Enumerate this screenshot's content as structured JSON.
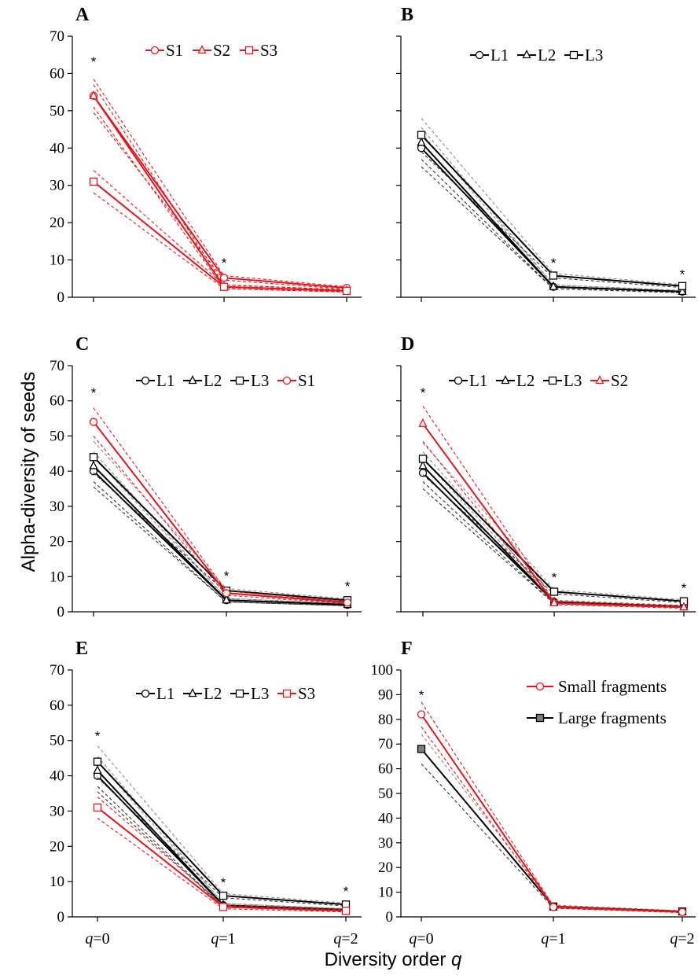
{
  "figure": {
    "ylabel": "Alpha-diversity of seeds",
    "xlabel": "Diversity order q",
    "xlabel_text": "Diversity order ",
    "xlabel_var": "q"
  },
  "chart_data": [
    {
      "panel": "A",
      "type": "line",
      "categories": [
        "q=0",
        "q=1",
        "q=2"
      ],
      "ylim": [
        0,
        70
      ],
      "yticks": [
        0,
        10,
        20,
        30,
        40,
        50,
        60,
        70
      ],
      "legend": "top-center",
      "series": [
        {
          "name": "S1",
          "color": "#e8141b",
          "marker": "circle",
          "values": [
            54,
            5.2,
            2.5
          ],
          "ci_upper": [
            58.5,
            5.8,
            2.8
          ],
          "ci_lower": [
            49.5,
            4.6,
            2.2
          ]
        },
        {
          "name": "S2",
          "color": "#e8141b",
          "marker": "triangle",
          "values": [
            54,
            2.8,
            1.7
          ],
          "ci_upper": [
            57,
            3.3,
            2.0
          ],
          "ci_lower": [
            51,
            2.3,
            1.4
          ]
        },
        {
          "name": "S3",
          "color": "#e8141b",
          "marker": "square",
          "values": [
            31,
            2.8,
            1.7
          ],
          "ci_upper": [
            34,
            3.3,
            2.0
          ],
          "ci_lower": [
            28,
            2.3,
            1.4
          ]
        }
      ],
      "annotations": [
        {
          "text": "*",
          "x": "q=0",
          "y": 62
        },
        {
          "text": "*",
          "x": "q=1",
          "y": 8
        }
      ]
    },
    {
      "panel": "B",
      "type": "line",
      "categories": [
        "q=0",
        "q=1",
        "q=2"
      ],
      "ylim": [
        0,
        70
      ],
      "legend": "top-center",
      "series": [
        {
          "name": "L1",
          "color": "#000000",
          "marker": "circle",
          "values": [
            40,
            2.8,
            1.5
          ],
          "ci_upper": [
            44,
            3.3,
            1.8
          ],
          "ci_lower": [
            35,
            2.3,
            1.2
          ]
        },
        {
          "name": "L2",
          "color": "#000000",
          "marker": "triangle",
          "values": [
            41.5,
            2.8,
            1.5
          ],
          "ci_upper": [
            45.5,
            3.3,
            1.8
          ],
          "ci_lower": [
            37,
            2.3,
            1.2
          ]
        },
        {
          "name": "L3",
          "color": "#000000",
          "marker": "square",
          "values": [
            43.5,
            5.8,
            3
          ],
          "ci_upper": [
            48,
            6.4,
            3.4
          ],
          "ci_lower": [
            39,
            5.2,
            2.6
          ]
        }
      ],
      "annotations": [
        {
          "text": "*",
          "x": "q=1",
          "y": 8
        },
        {
          "text": "*",
          "x": "q=2",
          "y": 5
        }
      ]
    },
    {
      "panel": "C",
      "type": "line",
      "categories": [
        "q=0",
        "q=1",
        "q=2"
      ],
      "ylim": [
        0,
        70
      ],
      "yticks": [
        0,
        10,
        20,
        30,
        40,
        50,
        60,
        70
      ],
      "legend": "top-center",
      "series": [
        {
          "name": "L1",
          "color": "#000000",
          "marker": "circle",
          "values": [
            40,
            3.3,
            2.0
          ],
          "ci_upper": [
            44,
            3.8,
            2.3
          ],
          "ci_lower": [
            35.5,
            2.8,
            1.7
          ]
        },
        {
          "name": "L2",
          "color": "#000000",
          "marker": "triangle",
          "values": [
            41.5,
            3.3,
            2.0
          ],
          "ci_upper": [
            45.5,
            3.8,
            2.3
          ],
          "ci_lower": [
            37,
            2.8,
            1.7
          ]
        },
        {
          "name": "L3",
          "color": "#000000",
          "marker": "square",
          "values": [
            44,
            6.0,
            3.3
          ],
          "ci_upper": [
            48.5,
            6.6,
            3.7
          ],
          "ci_lower": [
            39.5,
            5.4,
            2.9
          ]
        },
        {
          "name": "S1",
          "color": "#e8141b",
          "marker": "circle",
          "values": [
            54,
            5.3,
            2.6
          ],
          "ci_upper": [
            58,
            5.9,
            2.9
          ],
          "ci_lower": [
            50,
            4.7,
            2.3
          ]
        }
      ],
      "annotations": [
        {
          "text": "*",
          "x": "q=0",
          "y": 61
        },
        {
          "text": "*",
          "x": "q=1",
          "y": 9
        },
        {
          "text": "*",
          "x": "q=2",
          "y": 6
        }
      ]
    },
    {
      "panel": "D",
      "type": "line",
      "categories": [
        "q=0",
        "q=1",
        "q=2"
      ],
      "ylim": [
        0,
        70
      ],
      "legend": "top-center",
      "series": [
        {
          "name": "L1",
          "color": "#000000",
          "marker": "circle",
          "values": [
            39.5,
            2.8,
            1.5
          ],
          "ci_upper": [
            43.5,
            3.3,
            1.8
          ],
          "ci_lower": [
            35,
            2.3,
            1.2
          ]
        },
        {
          "name": "L2",
          "color": "#000000",
          "marker": "triangle",
          "values": [
            41.5,
            2.8,
            1.5
          ],
          "ci_upper": [
            45.5,
            3.3,
            1.8
          ],
          "ci_lower": [
            37,
            2.3,
            1.2
          ]
        },
        {
          "name": "L3",
          "color": "#000000",
          "marker": "square",
          "values": [
            43.5,
            5.7,
            3.0
          ],
          "ci_upper": [
            48,
            6.3,
            3.4
          ],
          "ci_lower": [
            39,
            5.1,
            2.6
          ]
        },
        {
          "name": "S2",
          "color": "#e8141b",
          "marker": "triangle",
          "values": [
            53.5,
            2.5,
            1.3
          ],
          "ci_upper": [
            58.5,
            3.0,
            1.6
          ],
          "ci_lower": [
            48.5,
            2.0,
            1.0
          ]
        }
      ],
      "annotations": [
        {
          "text": "*",
          "x": "q=0",
          "y": 61
        },
        {
          "text": "*",
          "x": "q=1",
          "y": 8.5
        },
        {
          "text": "*",
          "x": "q=2",
          "y": 5.5
        }
      ]
    },
    {
      "panel": "E",
      "type": "line",
      "categories": [
        "q=0",
        "q=1",
        "q=2"
      ],
      "ylim": [
        0,
        70
      ],
      "yticks": [
        0,
        10,
        20,
        30,
        40,
        50,
        60,
        70
      ],
      "legend": "top-center",
      "series": [
        {
          "name": "L1",
          "color": "#000000",
          "marker": "circle",
          "values": [
            40,
            3.3,
            2.0
          ],
          "ci_upper": [
            44,
            3.8,
            2.3
          ],
          "ci_lower": [
            35.5,
            2.8,
            1.7
          ]
        },
        {
          "name": "L2",
          "color": "#000000",
          "marker": "triangle",
          "values": [
            41.5,
            3.3,
            2.0
          ],
          "ci_upper": [
            45.5,
            3.8,
            2.3
          ],
          "ci_lower": [
            37,
            2.8,
            1.7
          ]
        },
        {
          "name": "L3",
          "color": "#000000",
          "marker": "square",
          "values": [
            44,
            6.0,
            3.5
          ],
          "ci_upper": [
            48.5,
            6.6,
            3.9
          ],
          "ci_lower": [
            39.5,
            5.4,
            3.1
          ]
        },
        {
          "name": "S3",
          "color": "#e8141b",
          "marker": "square",
          "values": [
            31,
            2.8,
            1.7
          ],
          "ci_upper": [
            34,
            3.3,
            2.0
          ],
          "ci_lower": [
            28,
            2.3,
            1.4
          ]
        }
      ],
      "annotations": [
        {
          "text": "*",
          "x": "q=0",
          "y": 50
        },
        {
          "text": "*",
          "x": "q=1",
          "y": 8.5
        },
        {
          "text": "*",
          "x": "q=2",
          "y": 6
        }
      ]
    },
    {
      "panel": "F",
      "type": "line",
      "categories": [
        "q=0",
        "q=1",
        "q=2"
      ],
      "ylim": [
        0,
        100
      ],
      "yticks": [
        0,
        10,
        20,
        30,
        40,
        50,
        60,
        70,
        80,
        90,
        100
      ],
      "legend": "top-right",
      "series": [
        {
          "name": "Small fragments",
          "color": "#e8141b",
          "marker": "circle",
          "values": [
            82,
            4.0,
            2.0
          ],
          "ci_upper": [
            87,
            4.5,
            2.3
          ],
          "ci_lower": [
            77,
            3.5,
            1.7
          ]
        },
        {
          "name": "Large fragments",
          "color": "#000000",
          "marker": "filled-square",
          "values": [
            68,
            4.2,
            2.2
          ],
          "ci_upper": [
            74,
            4.8,
            2.5
          ],
          "ci_lower": [
            62,
            3.6,
            1.9
          ]
        }
      ],
      "annotations": [
        {
          "text": "*",
          "x": "q=0",
          "y": 88
        }
      ]
    }
  ]
}
